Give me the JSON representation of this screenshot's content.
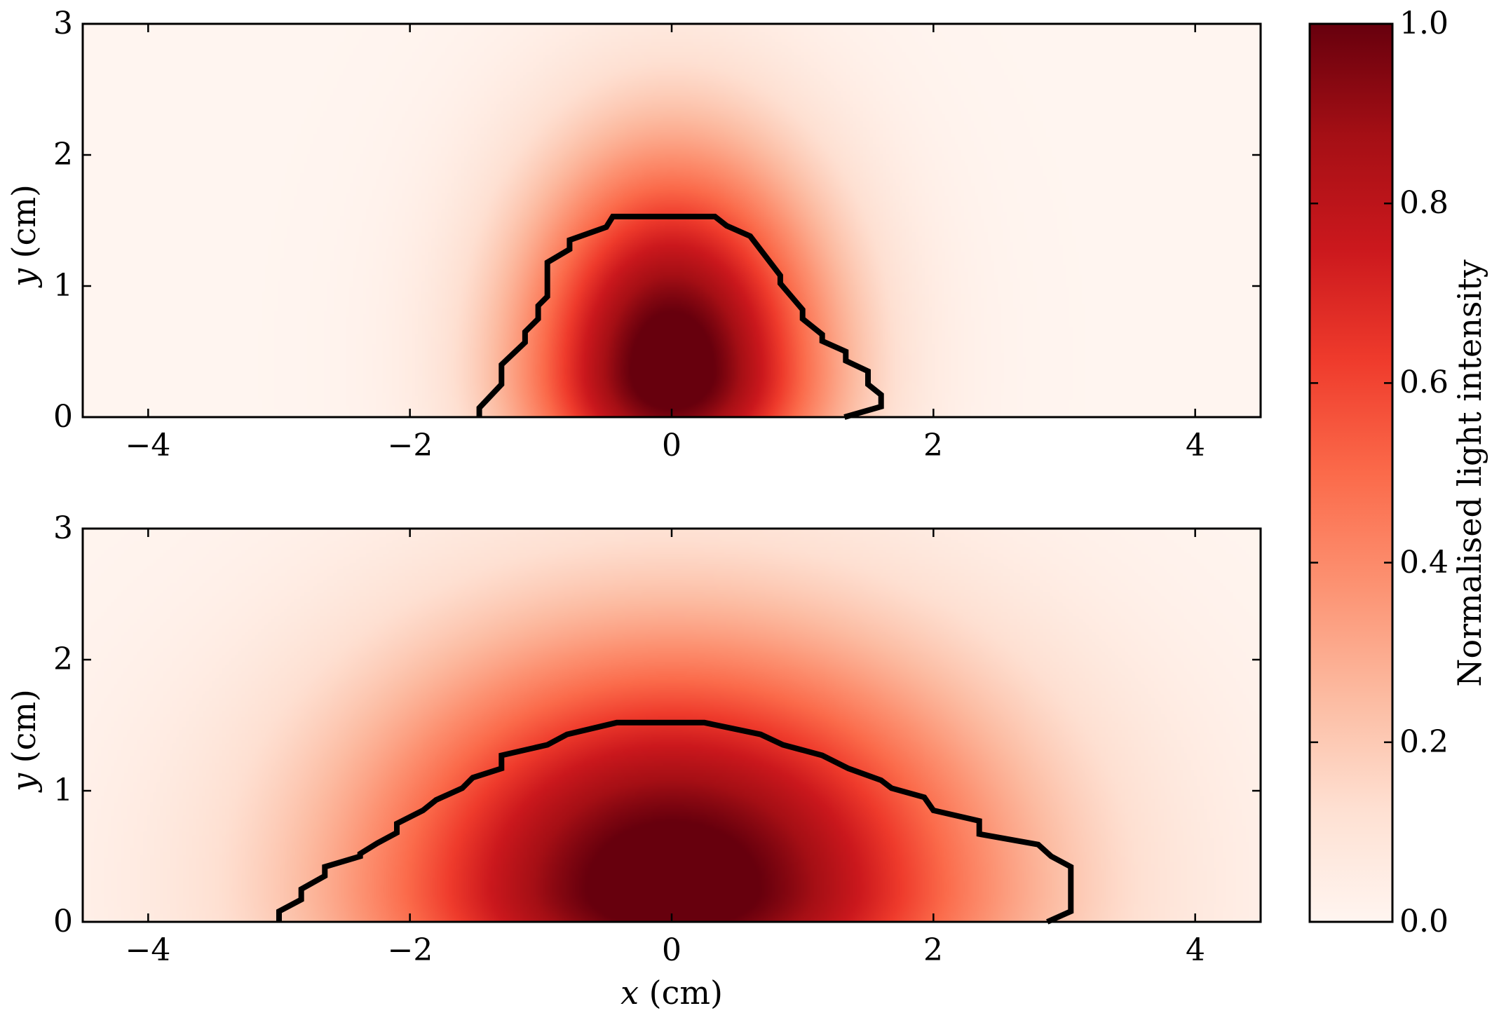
{
  "chart_data": {
    "type": "heatmap",
    "colormap": "Reds",
    "panels": [
      {
        "id": "top",
        "xlim": [
          -4.5,
          4.5
        ],
        "ylim": [
          0,
          3
        ],
        "xticks": [
          -4,
          -2,
          0,
          2,
          4
        ],
        "yticks": [
          0,
          1,
          2,
          3
        ],
        "xtick_labels": [
          "−4",
          "−2",
          "0",
          "2",
          "4"
        ],
        "ytick_labels": [
          "0",
          "1",
          "2",
          "3"
        ],
        "ylabel_var": "y",
        "ylabel_unit": "(cm)",
        "xlabel_var": "",
        "xlabel_unit": "",
        "intensity_peak": {
          "x": 0.0,
          "y": 0.35
        },
        "intensity_spread": {
          "sx_inner": 0.75,
          "sx_outer": 1.05,
          "sy_inner": 0.7,
          "sy_outer": 1.1
        },
        "contour": [
          [
            -1.47,
            0
          ],
          [
            -1.47,
            0.07
          ],
          [
            -1.3,
            0.25
          ],
          [
            -1.3,
            0.4
          ],
          [
            -1.12,
            0.57
          ],
          [
            -1.12,
            0.65
          ],
          [
            -1.02,
            0.75
          ],
          [
            -1.02,
            0.85
          ],
          [
            -0.95,
            0.92
          ],
          [
            -0.95,
            1.18
          ],
          [
            -0.78,
            1.28
          ],
          [
            -0.78,
            1.35
          ],
          [
            -0.5,
            1.45
          ],
          [
            -0.45,
            1.53
          ],
          [
            0.33,
            1.53
          ],
          [
            0.42,
            1.46
          ],
          [
            0.6,
            1.38
          ],
          [
            0.83,
            1.08
          ],
          [
            0.83,
            1.02
          ],
          [
            1.0,
            0.82
          ],
          [
            1.0,
            0.75
          ],
          [
            1.15,
            0.63
          ],
          [
            1.15,
            0.58
          ],
          [
            1.33,
            0.5
          ],
          [
            1.33,
            0.43
          ],
          [
            1.5,
            0.35
          ],
          [
            1.5,
            0.25
          ],
          [
            1.6,
            0.17
          ],
          [
            1.6,
            0.08
          ],
          [
            1.32,
            0
          ]
        ]
      },
      {
        "id": "bottom",
        "xlim": [
          -4.5,
          4.5
        ],
        "ylim": [
          0,
          3
        ],
        "xticks": [
          -4,
          -2,
          0,
          2,
          4
        ],
        "yticks": [
          0,
          1,
          2,
          3
        ],
        "xtick_labels": [
          "−4",
          "−2",
          "0",
          "2",
          "4"
        ],
        "ytick_labels": [
          "0",
          "1",
          "2",
          "3"
        ],
        "ylabel_var": "y",
        "ylabel_unit": "(cm)",
        "xlabel_var": "x",
        "xlabel_unit": "(cm)",
        "intensity_peak": {
          "x": 0.0,
          "y": 0.25
        },
        "intensity_spread": {
          "sx_inner": 1.55,
          "sx_outer": 2.2,
          "sy_inner": 0.75,
          "sy_outer": 1.25
        },
        "contour": [
          [
            -3.0,
            0
          ],
          [
            -3.0,
            0.08
          ],
          [
            -2.83,
            0.17
          ],
          [
            -2.83,
            0.25
          ],
          [
            -2.65,
            0.35
          ],
          [
            -2.65,
            0.42
          ],
          [
            -2.38,
            0.5
          ],
          [
            -2.38,
            0.52
          ],
          [
            -2.25,
            0.6
          ],
          [
            -2.1,
            0.68
          ],
          [
            -2.1,
            0.75
          ],
          [
            -1.9,
            0.85
          ],
          [
            -1.8,
            0.93
          ],
          [
            -1.6,
            1.02
          ],
          [
            -1.52,
            1.1
          ],
          [
            -1.3,
            1.17
          ],
          [
            -1.3,
            1.27
          ],
          [
            -0.95,
            1.35
          ],
          [
            -0.8,
            1.43
          ],
          [
            -0.42,
            1.52
          ],
          [
            0.25,
            1.52
          ],
          [
            0.68,
            1.43
          ],
          [
            0.85,
            1.35
          ],
          [
            1.15,
            1.27
          ],
          [
            1.35,
            1.17
          ],
          [
            1.6,
            1.08
          ],
          [
            1.68,
            1.02
          ],
          [
            1.93,
            0.95
          ],
          [
            2.0,
            0.85
          ],
          [
            2.35,
            0.77
          ],
          [
            2.35,
            0.67
          ],
          [
            2.8,
            0.59
          ],
          [
            2.9,
            0.5
          ],
          [
            3.05,
            0.42
          ],
          [
            3.05,
            0.08
          ],
          [
            2.87,
            0
          ]
        ]
      }
    ],
    "colorbar": {
      "range": [
        0,
        1
      ],
      "ticks": [
        0.0,
        0.2,
        0.4,
        0.6,
        0.8,
        1.0
      ],
      "tick_labels": [
        "0.0",
        "0.2",
        "0.4",
        "0.6",
        "0.8",
        "1.0"
      ],
      "label": "Normalised light intensity"
    },
    "colors": {
      "contour": "#000000",
      "cmap_stops": [
        "#fff5f0",
        "#fee0d2",
        "#fcbba1",
        "#fc9272",
        "#fb6a4a",
        "#ef3b2c",
        "#cb181d",
        "#a50f15",
        "#67000d"
      ]
    }
  }
}
